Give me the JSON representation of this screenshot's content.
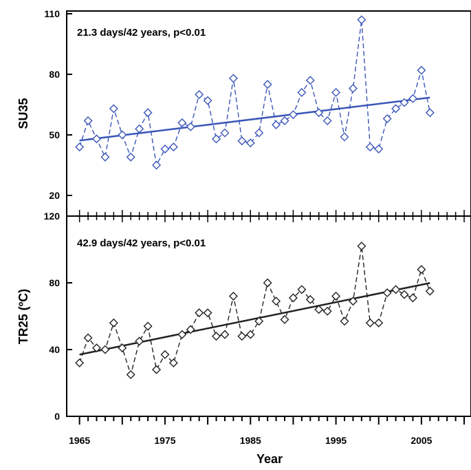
{
  "colors": {
    "top_series": "#3a56b8",
    "bottom_series": "#222222",
    "axis": "#000000"
  },
  "chart_data": [
    {
      "type": "line",
      "panel": "top",
      "ylabel": "SU35",
      "annotation": "21.3 days/42 years, p<0.01",
      "ylim": [
        20,
        110
      ],
      "y_ticks": [
        "20",
        "50",
        "80",
        "110"
      ],
      "x": [
        1965,
        1966,
        1967,
        1968,
        1969,
        1970,
        1971,
        1972,
        1973,
        1974,
        1975,
        1976,
        1977,
        1978,
        1979,
        1980,
        1981,
        1982,
        1983,
        1984,
        1985,
        1986,
        1987,
        1988,
        1989,
        1990,
        1991,
        1992,
        1993,
        1994,
        1995,
        1996,
        1997,
        1998,
        1999,
        2000,
        2001,
        2002,
        2003,
        2004,
        2005,
        2006
      ],
      "series": [
        {
          "values": [
            44,
            57,
            48,
            39,
            63,
            50,
            39,
            53,
            61,
            35,
            43,
            44,
            56,
            54,
            70,
            67,
            48,
            51,
            78,
            47,
            46,
            51,
            75,
            55,
            57,
            60,
            71,
            77,
            61,
            57,
            71,
            49,
            73,
            107,
            44,
            43,
            58,
            63,
            66,
            68,
            82,
            61
          ]
        }
      ],
      "trend": {
        "x": [
          1965,
          2006
        ],
        "y": [
          47.2,
          68.5
        ]
      }
    },
    {
      "type": "line",
      "panel": "bottom",
      "ylabel": "TR25 (ºC)",
      "xlabel": "Year",
      "annotation": "42.9 days/42 years, p<0.01",
      "ylim": [
        0,
        120
      ],
      "y_ticks": [
        "0",
        "40",
        "80",
        "120"
      ],
      "x_ticks": [
        "1965",
        "1975",
        "1985",
        "1995",
        "2005"
      ],
      "x": [
        1965,
        1966,
        1967,
        1968,
        1969,
        1970,
        1971,
        1972,
        1973,
        1974,
        1975,
        1976,
        1977,
        1978,
        1979,
        1980,
        1981,
        1982,
        1983,
        1984,
        1985,
        1986,
        1987,
        1988,
        1989,
        1990,
        1991,
        1992,
        1993,
        1994,
        1995,
        1996,
        1997,
        1998,
        1999,
        2000,
        2001,
        2002,
        2003,
        2004,
        2005,
        2006
      ],
      "series": [
        {
          "values": [
            32,
            47,
            41,
            40,
            56,
            41,
            25,
            45,
            54,
            28,
            37,
            32,
            49,
            52,
            62,
            62,
            48,
            49,
            72,
            48,
            49,
            57,
            80,
            69,
            58,
            71,
            76,
            70,
            64,
            63,
            72,
            57,
            69,
            102,
            56,
            56,
            74,
            76,
            73,
            71,
            88,
            75
          ]
        }
      ],
      "trend": {
        "x": [
          1965,
          2006
        ],
        "y": [
          37.0,
          79.9
        ]
      }
    }
  ]
}
